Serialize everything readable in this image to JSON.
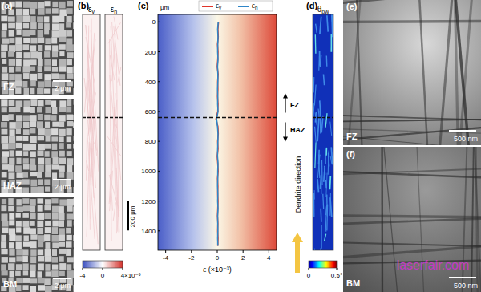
{
  "chart_data": {
    "type": "line",
    "title": "(c)",
    "x_label": "ε (×10⁻³)",
    "y_label": "μm",
    "orientation": "horizontal",
    "y": [
      0,
      50,
      100,
      150,
      200,
      250,
      300,
      350,
      400,
      450,
      500,
      550,
      600,
      650,
      700,
      750,
      800,
      850,
      900,
      950,
      1000,
      1050,
      1100,
      1150,
      1200,
      1250,
      1300,
      1350,
      1400,
      1450,
      1500
    ],
    "series": [
      {
        "name": "εv",
        "color": "#e0352b",
        "values": [
          0.1,
          0.05,
          0.08,
          0.02,
          0.06,
          0.04,
          0.0,
          0.07,
          0.03,
          0.05,
          0.02,
          0.06,
          0.04,
          -0.1,
          0.05,
          0.08,
          0.03,
          0.06,
          0.0,
          0.04,
          0.07,
          0.02,
          0.05,
          0.03,
          0.06,
          0.04,
          0.02,
          0.05,
          0.03,
          0.06,
          0.04
        ]
      },
      {
        "name": "εh",
        "color": "#2f86c8",
        "values": [
          0.08,
          0.03,
          0.06,
          0.04,
          0.03,
          0.06,
          0.02,
          0.05,
          0.05,
          0.02,
          0.04,
          0.03,
          0.06,
          -0.05,
          0.02,
          0.06,
          0.05,
          0.03,
          0.02,
          0.06,
          0.04,
          0.04,
          0.02,
          0.05,
          0.03,
          0.06,
          0.03,
          0.04,
          0.05,
          0.03,
          0.05
        ]
      }
    ],
    "xlim": [
      -4.6,
      4.6
    ],
    "xticks": [
      -4,
      -2,
      0,
      2,
      4
    ],
    "ylim": [
      -50,
      1530
    ],
    "yticks": [
      0,
      200,
      400,
      600,
      800,
      1000,
      1200,
      1400
    ],
    "boundary": 640,
    "annotations": [
      {
        "text": "FZ"
      },
      {
        "text": "HAZ"
      }
    ],
    "legend": "top"
  },
  "panels": {
    "a": {
      "label": "(a)",
      "images": [
        {
          "zone": "FZ",
          "scale": "2 μm"
        },
        {
          "zone": "HAZ",
          "scale": "2 μm"
        },
        {
          "zone": "BM",
          "scale": "2 μm"
        }
      ]
    },
    "b": {
      "label": "(b)",
      "maps": [
        "εv",
        "εh"
      ],
      "scale_bar": "200 μm",
      "colorbar": {
        "range": [
          -4,
          4
        ],
        "ticks": [
          -4,
          0,
          4
        ],
        "label": "×10⁻³"
      }
    },
    "d": {
      "label": "(d)",
      "map": "θpw",
      "dendrite_label": "Dendrite direction",
      "colorbar": {
        "range": [
          0,
          0.5
        ],
        "ticks": [
          0,
          {
            "value": 0.5,
            "label": "0.5°"
          }
        ]
      }
    },
    "e": {
      "label": "(e)",
      "zone": "FZ",
      "scale": "500 nm"
    },
    "f": {
      "label": "(f)",
      "zone": "BM",
      "scale": "500 nm"
    },
    "watermark": "laserfair.com"
  }
}
